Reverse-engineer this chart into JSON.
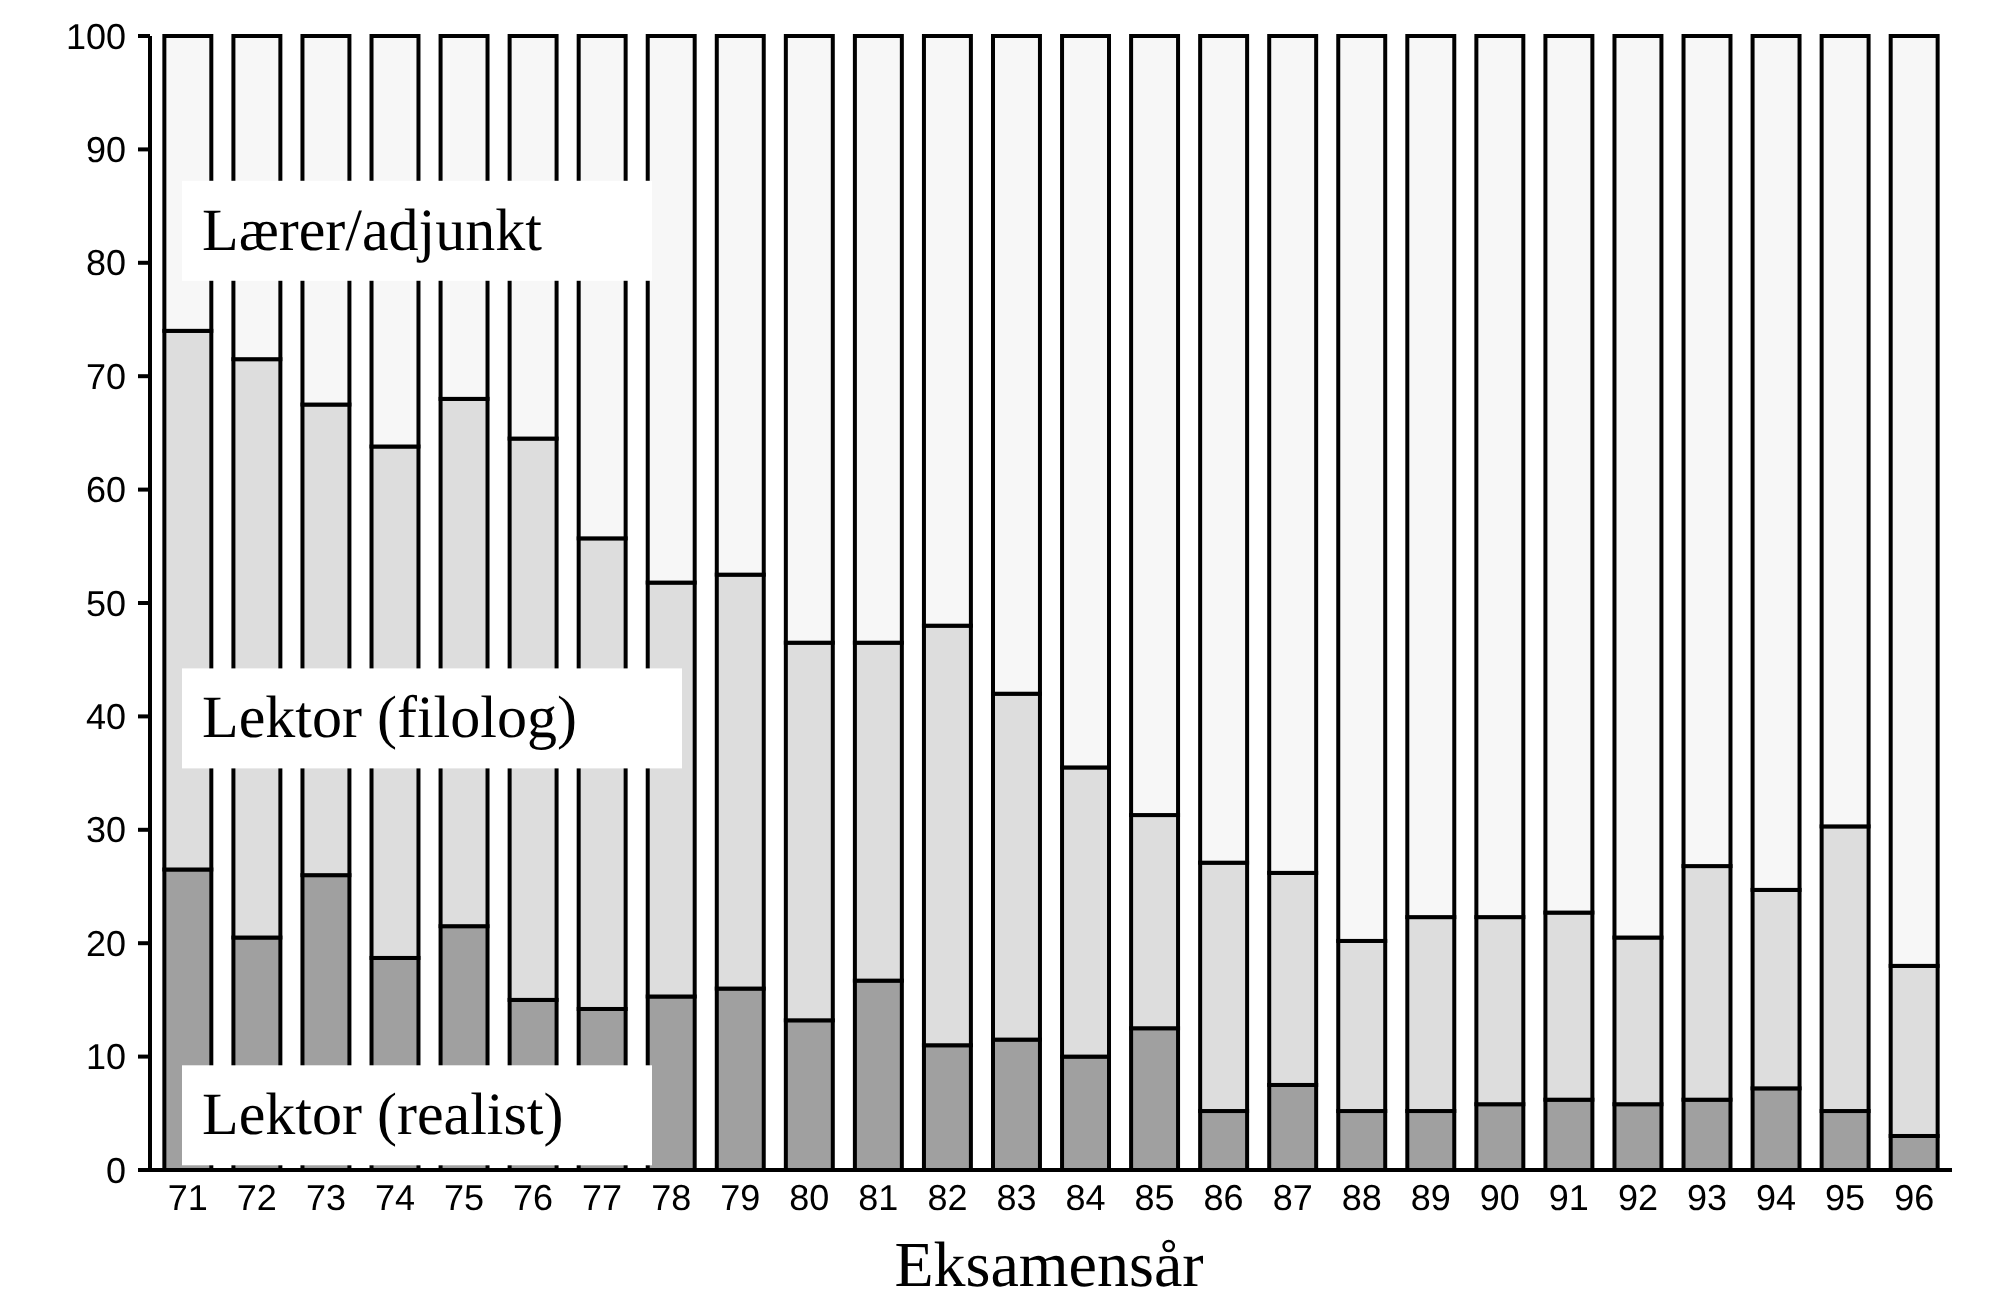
{
  "chart_data": {
    "type": "bar",
    "stacked": true,
    "xlabel": "Eksamensår",
    "categories": [
      "71",
      "72",
      "73",
      "74",
      "75",
      "76",
      "77",
      "78",
      "79",
      "80",
      "81",
      "82",
      "83",
      "84",
      "85",
      "86",
      "87",
      "88",
      "89",
      "90",
      "91",
      "92",
      "93",
      "94",
      "95",
      "96"
    ],
    "series": [
      {
        "name": "Lektor (realist)",
        "color": "#a0a0a0",
        "values": [
          26.5,
          20.5,
          26,
          18.7,
          21.5,
          15,
          14.2,
          15.3,
          16,
          13.2,
          16.7,
          11,
          11.5,
          10,
          12.5,
          5.2,
          7.5,
          5.2,
          5.2,
          5.8,
          6.2,
          5.8,
          6.2,
          7.2,
          5.2,
          3
        ]
      },
      {
        "name": "Lektor (filolog)",
        "color": "#dddddd",
        "values": [
          47.5,
          51,
          41.5,
          45.1,
          46.5,
          49.5,
          41.5,
          36.5,
          36.5,
          33.3,
          29.8,
          37,
          30.5,
          25.5,
          18.8,
          21.9,
          18.7,
          15,
          17.1,
          16.5,
          16.5,
          14.7,
          20.6,
          17.5,
          25.1,
          15
        ]
      },
      {
        "name": "Lærer/adjunkt",
        "color": "#f7f7f7",
        "values": [
          26,
          28.5,
          32.5,
          36.2,
          32,
          35.5,
          44.3,
          48.2,
          47.5,
          53.5,
          53.5,
          52,
          58,
          64.5,
          68.7,
          72.9,
          73.8,
          79.8,
          77.7,
          77.7,
          77.3,
          79.5,
          73.2,
          75.3,
          69.7,
          82
        ]
      }
    ],
    "ylim": [
      0,
      100
    ],
    "yticks": [
      0,
      10,
      20,
      30,
      40,
      50,
      60,
      70,
      80,
      90,
      100
    ],
    "grid": false,
    "legend": "left"
  }
}
